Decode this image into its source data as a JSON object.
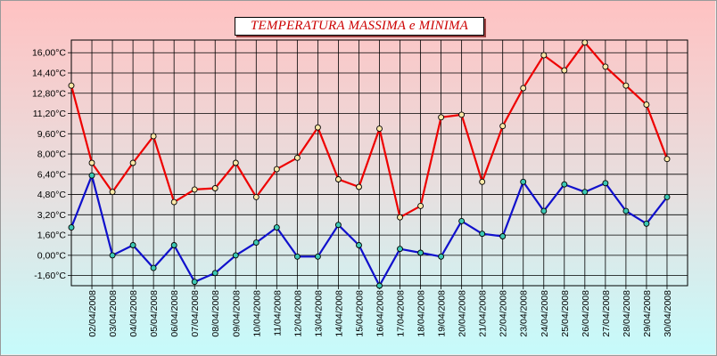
{
  "chart_data": {
    "type": "line",
    "title": "TEMPERATURA MASSIMA e MINIMA",
    "categories": [
      "02/04/2008",
      "03/04/2008",
      "04/04/2008",
      "05/04/2008",
      "06/04/2008",
      "07/04/2008",
      "08/04/2008",
      "09/04/2008",
      "10/04/2008",
      "11/04/2008",
      "12/04/2008",
      "13/04/2008",
      "14/04/2008",
      "15/04/2008",
      "16/04/2008",
      "17/04/2008",
      "18/04/2008",
      "19/04/2008",
      "20/04/2008",
      "21/04/2008",
      "22/04/2008",
      "23/04/2008",
      "24/04/2008",
      "25/04/2008",
      "26/04/2008",
      "27/04/2008",
      "28/04/2008",
      "29/04/2008",
      "30/04/2008"
    ],
    "y_ticks": [
      "16,00°C",
      "14,40°C",
      "12,80°C",
      "11,20°C",
      "9,60°C",
      "8,00°C",
      "6,40°C",
      "4,80°C",
      "3,20°C",
      "1,60°C",
      "0,00°C",
      "-1,60°C"
    ],
    "ylim": [
      -2.4,
      17.0
    ],
    "grid": true,
    "series": [
      {
        "color": "#ee0000",
        "marker_fill": "#ffe9a8",
        "points": [
          [
            "01/04/2008",
            13.4
          ],
          [
            "02/04/2008",
            7.3
          ],
          [
            "03/04/2008",
            5.0
          ],
          [
            "04/04/2008",
            7.3
          ],
          [
            "05/04/2008",
            9.4
          ],
          [
            "06/04/2008",
            4.2
          ],
          [
            "07/04/2008",
            5.2
          ],
          [
            "08/04/2008",
            5.3
          ],
          [
            "09/04/2008",
            7.3
          ],
          [
            "10/04/2008",
            4.6
          ],
          [
            "11/04/2008",
            6.8
          ],
          [
            "12/04/2008",
            7.7
          ],
          [
            "13/04/2008",
            10.1
          ],
          [
            "14/04/2008",
            6.0
          ],
          [
            "15/04/2008",
            5.4
          ],
          [
            "16/04/2008",
            10.0
          ],
          [
            "17/04/2008",
            3.0
          ],
          [
            "18/04/2008",
            3.9
          ],
          [
            "19/04/2008",
            10.9
          ],
          [
            "20/04/2008",
            11.1
          ],
          [
            "21/04/2008",
            5.8
          ],
          [
            "22/04/2008",
            10.2
          ],
          [
            "23/04/2008",
            13.2
          ],
          [
            "24/04/2008",
            15.8
          ],
          [
            "25/04/2008",
            14.6
          ],
          [
            "26/04/2008",
            16.8
          ],
          [
            "27/04/2008",
            14.9
          ],
          [
            "28/04/2008",
            13.4
          ],
          [
            "29/04/2008",
            11.9
          ],
          [
            "30/04/2008",
            7.6
          ]
        ]
      },
      {
        "color": "#1010cc",
        "marker_fill": "#3cc8b4",
        "points": [
          [
            "01/04/2008",
            2.2
          ],
          [
            "02/04/2008",
            6.3
          ],
          [
            "03/04/2008",
            0.0
          ],
          [
            "04/04/2008",
            0.8
          ],
          [
            "05/04/2008",
            -1.0
          ],
          [
            "06/04/2008",
            0.8
          ],
          [
            "07/04/2008",
            -2.1
          ],
          [
            "08/04/2008",
            -1.4
          ],
          [
            "09/04/2008",
            0.0
          ],
          [
            "10/04/2008",
            1.0
          ],
          [
            "11/04/2008",
            2.2
          ],
          [
            "12/04/2008",
            -0.1
          ],
          [
            "13/04/2008",
            -0.1
          ],
          [
            "14/04/2008",
            2.4
          ],
          [
            "15/04/2008",
            0.8
          ],
          [
            "16/04/2008",
            -2.4
          ],
          [
            "17/04/2008",
            0.5
          ],
          [
            "18/04/2008",
            0.2
          ],
          [
            "19/04/2008",
            -0.1
          ],
          [
            "20/04/2008",
            2.7
          ],
          [
            "21/04/2008",
            1.7
          ],
          [
            "22/04/2008",
            1.5
          ],
          [
            "23/04/2008",
            5.8
          ],
          [
            "24/04/2008",
            3.5
          ],
          [
            "25/04/2008",
            5.6
          ],
          [
            "26/04/2008",
            5.0
          ],
          [
            "27/04/2008",
            5.7
          ],
          [
            "28/04/2008",
            3.5
          ],
          [
            "29/04/2008",
            2.5
          ],
          [
            "30/04/2008",
            4.6
          ]
        ]
      }
    ]
  }
}
